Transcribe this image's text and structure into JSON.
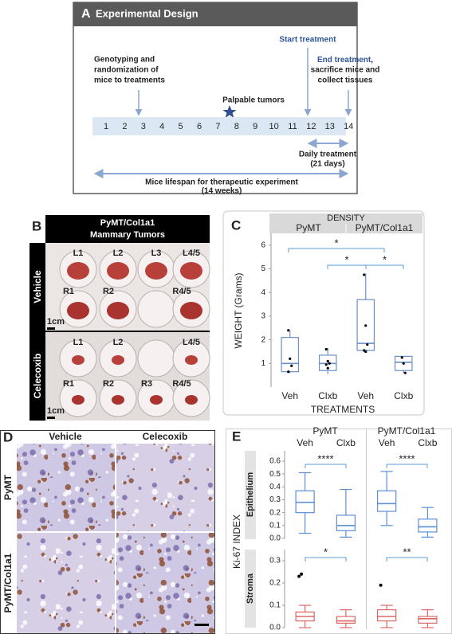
{
  "panel_a": {
    "label": "A",
    "title": "Experimental Design",
    "genotyping": [
      "Genotyping and",
      "randomization of",
      "mice to treatments"
    ],
    "start": "Start treatment",
    "palpable": "Palpable tumors",
    "end_treatment": "End treatment",
    "end_comma": ",",
    "end_rest": [
      "sacrifice mice and",
      "collect tissues"
    ],
    "days": [
      1,
      2,
      3,
      4,
      5,
      6,
      7,
      8,
      9,
      10,
      11,
      12,
      13,
      14
    ],
    "daily": [
      "Daily treatment",
      "(21 days)"
    ],
    "lifespan": [
      "Mice lifespan for therapeutic experiment",
      "(14 weeks)"
    ]
  },
  "panel_b": {
    "label": "B",
    "header": [
      "PyMT/Col1a1",
      "Mammary Tumors"
    ],
    "rows": [
      {
        "name": "Vehicle",
        "top": [
          "L1",
          "L2",
          "L3",
          "L4/5"
        ],
        "bottom": [
          "R1",
          "R2",
          "R4/5"
        ],
        "scale": "1cm"
      },
      {
        "name": "Celecoxib",
        "top": [
          "L1",
          "L2",
          "L4/5"
        ],
        "bottom": [
          "R1",
          "R2",
          "R3",
          "R4/5"
        ],
        "scale": "1cm"
      }
    ]
  },
  "panel_d": {
    "label": "D",
    "columns": [
      "Vehicle",
      "Celecoxib"
    ],
    "rows": [
      "PyMT",
      "PyMT/Col1a1"
    ]
  },
  "chart_data": [
    {
      "type": "box",
      "panel_label": "C",
      "title": "DENSITY",
      "groups": [
        "PyMT",
        "PyMT/Col1a1"
      ],
      "categories": [
        "Veh",
        "Clxb",
        "Veh",
        "Clxb"
      ],
      "x_label": "TREATMENTS",
      "y_label": "WEIGHT (Grams)",
      "ylim": [
        0,
        6.5
      ],
      "yticks": [
        1,
        2,
        3,
        4,
        5,
        6
      ],
      "color": "#6b8fc7",
      "boxes": [
        {
          "low": 0.6,
          "q1": 0.65,
          "median": 1.0,
          "q3": 2.1,
          "high": 2.4
        },
        {
          "low": 0.55,
          "q1": 0.7,
          "median": 1.0,
          "q3": 1.35,
          "high": 1.65
        },
        {
          "low": 1.5,
          "q1": 1.55,
          "median": 1.85,
          "q3": 3.7,
          "high": 4.8
        },
        {
          "low": 0.6,
          "q1": 0.7,
          "median": 1.05,
          "q3": 1.3,
          "high": 1.3
        }
      ],
      "points": [
        [
          2.4,
          1.2,
          0.9,
          0.65
        ],
        [
          1.6,
          1.1,
          1.0,
          0.95,
          0.8
        ],
        [
          4.75,
          2.6,
          1.8,
          1.55,
          1.5
        ],
        [
          1.25,
          1.0,
          0.6
        ]
      ],
      "annotations": [
        "*",
        "*",
        "*"
      ]
    },
    {
      "type": "box",
      "panel_label": "E",
      "groups": [
        "PyMT",
        "PyMT/Col1a1"
      ],
      "categories": [
        "Veh",
        "Clxb",
        "Veh",
        "Clxb"
      ],
      "y_label": "Ki-67 INDEX",
      "facet": "Epithelium",
      "ylim": [
        0,
        0.68
      ],
      "yticks": [
        {
          "value": 0,
          "label": "0.0"
        },
        0.1,
        0.2,
        0.3,
        0.4,
        0.5,
        0.6
      ],
      "color": "#5b8fd6",
      "boxes": [
        {
          "low": 0.04,
          "q1": 0.2,
          "median": 0.28,
          "q3": 0.37,
          "high": 0.51
        },
        {
          "low": 0.01,
          "q1": 0.06,
          "median": 0.1,
          "q3": 0.18,
          "high": 0.38
        },
        {
          "low": 0.1,
          "q1": 0.21,
          "median": 0.27,
          "q3": 0.37,
          "high": 0.52
        },
        {
          "low": 0.01,
          "q1": 0.05,
          "median": 0.09,
          "q3": 0.15,
          "high": 0.24
        }
      ],
      "annotations": [
        "****",
        "****"
      ]
    },
    {
      "type": "box",
      "facet": "Stroma",
      "ylim": [
        0,
        0.35
      ],
      "yticks": [
        {
          "value": 0,
          "label": "0.0"
        },
        0.1,
        0.2,
        0.3
      ],
      "color": "#e06666",
      "boxes": [
        {
          "low": 0,
          "q1": 0.03,
          "median": 0.05,
          "q3": 0.07,
          "high": 0.1,
          "outliers": [
            0.23,
            0.24
          ]
        },
        {
          "low": 0,
          "q1": 0.02,
          "median": 0.03,
          "q3": 0.05,
          "high": 0.08,
          "outliers": []
        },
        {
          "low": 0,
          "q1": 0.03,
          "median": 0.05,
          "q3": 0.08,
          "high": 0.1,
          "outliers": [
            0.19
          ]
        },
        {
          "low": 0,
          "q1": 0.02,
          "median": 0.04,
          "q3": 0.05,
          "high": 0.08,
          "outliers": []
        }
      ],
      "annotations": [
        "*",
        "**"
      ]
    }
  ]
}
